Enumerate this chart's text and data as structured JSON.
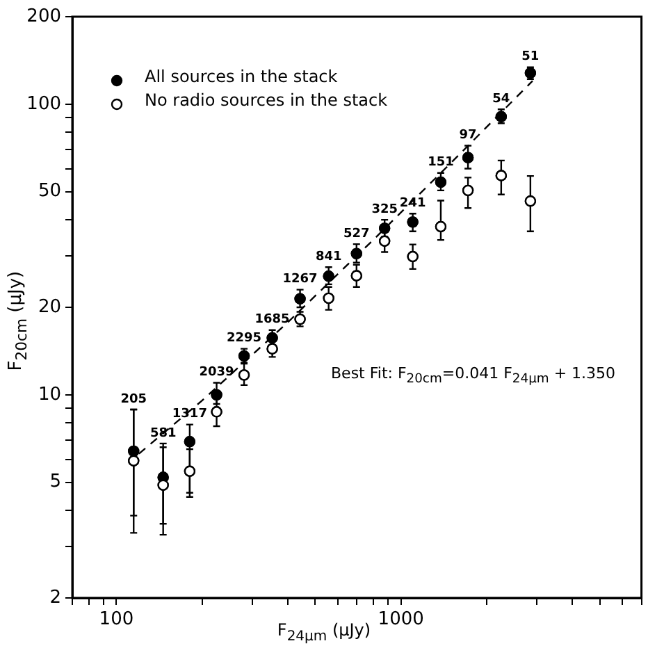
{
  "chart_data": {
    "type": "scatter",
    "xlabel": "F$_{24μm}$ (μJy)",
    "ylabel": "F$_{20cm}$ (μJy)",
    "log": "xy",
    "marker": "circle",
    "legend": "top left",
    "grid": false,
    "x": [
      115,
      146,
      181,
      225,
      281,
      353,
      442,
      557,
      698,
      876,
      1100,
      1380,
      1720,
      2250,
      2850
    ],
    "xlim": [
      70,
      7000
    ],
    "ylim": [
      2,
      200
    ],
    "xticks": [
      {
        "value": 70,
        "label": null
      },
      {
        "value": 80,
        "label": null
      },
      {
        "value": 90,
        "label": null
      },
      100,
      {
        "value": 200,
        "label": null
      },
      {
        "value": 300,
        "label": null
      },
      {
        "value": 400,
        "label": null
      },
      {
        "value": 500,
        "label": null
      },
      {
        "value": 600,
        "label": null
      },
      {
        "value": 700,
        "label": null
      },
      {
        "value": 800,
        "label": null
      },
      {
        "value": 900,
        "label": null
      },
      1000,
      {
        "value": 2000,
        "label": null
      },
      {
        "value": 3000,
        "label": null
      },
      {
        "value": 4000,
        "label": null
      },
      {
        "value": 5000,
        "label": null
      },
      {
        "value": 6000,
        "label": null
      },
      {
        "value": 7000,
        "label": null
      }
    ],
    "yticks": [
      2,
      {
        "value": 3,
        "label": null
      },
      {
        "value": 4,
        "label": null
      },
      5,
      {
        "value": 6,
        "label": null
      },
      {
        "value": 7,
        "label": null
      },
      {
        "value": 8,
        "label": null
      },
      {
        "value": 9,
        "label": null
      },
      10,
      20,
      {
        "value": 30,
        "label": null
      },
      {
        "value": 40,
        "label": null
      },
      50,
      {
        "value": 60,
        "label": null
      },
      {
        "value": 70,
        "label": null
      },
      {
        "value": 80,
        "label": null
      },
      {
        "value": 90,
        "label": null
      },
      100,
      200
    ],
    "series": [
      {
        "name": "All sources in the stack",
        "color": "#000000",
        "values": [
          6.4,
          5.2,
          6.9,
          10,
          13.6,
          15.7,
          21.4,
          25.6,
          30.6,
          37.4,
          39.3,
          53.9,
          65.5,
          90.6,
          128
        ],
        "errors": [
          [
            3.35,
            8.9
          ],
          [
            3.3,
            6.8
          ],
          [
            4.45,
            7.9
          ],
          [
            9.3,
            11
          ],
          [
            12.9,
            14.4
          ],
          [
            14.8,
            16.7
          ],
          [
            20,
            23
          ],
          [
            24,
            27.5
          ],
          [
            28.5,
            33
          ],
          [
            35,
            40
          ],
          [
            36.5,
            42
          ],
          [
            50.5,
            58
          ],
          [
            60,
            72
          ],
          [
            86,
            96
          ],
          [
            122,
            134
          ]
        ]
      },
      {
        "name": "No radio sources in the stack",
        "color": "#000000",
        "values": [
          5.93,
          4.89,
          5.46,
          8.74,
          11.7,
          14.4,
          18.2,
          21.5,
          25.7,
          33.8,
          29.9,
          37.9,
          50.5,
          56.8,
          46.4
        ],
        "errors": [
          [
            3.84,
            8.9
          ],
          [
            3.6,
            6.6
          ],
          [
            4.6,
            6.5
          ],
          [
            7.8,
            9.7
          ],
          [
            10.8,
            12.8
          ],
          [
            13.5,
            15.4
          ],
          [
            17.2,
            19.3
          ],
          [
            19.6,
            23.5
          ],
          [
            23.5,
            28
          ],
          [
            31,
            37
          ],
          [
            27.1,
            32.9
          ],
          [
            34.1,
            46.6
          ],
          [
            43.9,
            55.9
          ],
          [
            48.9,
            64
          ],
          [
            36.5,
            56.6
          ]
        ]
      },
      {
        "type": "line",
        "color": "#000000",
        "marker": "none",
        "line_style": "dashed",
        "x": [
          120,
          200,
          400,
          800,
          1500,
          2900
        ],
        "values": [
          6.27,
          9.55,
          17.75,
          34.15,
          62.85,
          120.25
        ]
      }
    ],
    "annotations": [
      "Best Fit: F$_{20cm}$=0.041 F$_{24μm}$ + 1.350",
      {
        "text": "205",
        "x": 115,
        "y": 8.9
      },
      {
        "text": "581",
        "x": 146,
        "y": 6.8
      },
      {
        "text": "1317",
        "x": 181,
        "y": 7.9
      },
      {
        "text": "2039",
        "x": 225,
        "y": 11
      },
      {
        "text": "2295",
        "x": 281,
        "y": 14.4
      },
      {
        "text": "1685",
        "x": 353,
        "y": 16.7
      },
      {
        "text": "1267",
        "x": 442,
        "y": 23
      },
      {
        "text": "841",
        "x": 557,
        "y": 27.5
      },
      {
        "text": "527",
        "x": 698,
        "y": 33
      },
      {
        "text": "325",
        "x": 876,
        "y": 40
      },
      {
        "text": "241",
        "x": 1100,
        "y": 42
      },
      {
        "text": "151",
        "x": 1380,
        "y": 58
      },
      {
        "text": "97",
        "x": 1720,
        "y": 72
      },
      {
        "text": "54",
        "x": 2250,
        "y": 96
      },
      {
        "text": "51",
        "x": 2850,
        "y": 134
      }
    ]
  }
}
